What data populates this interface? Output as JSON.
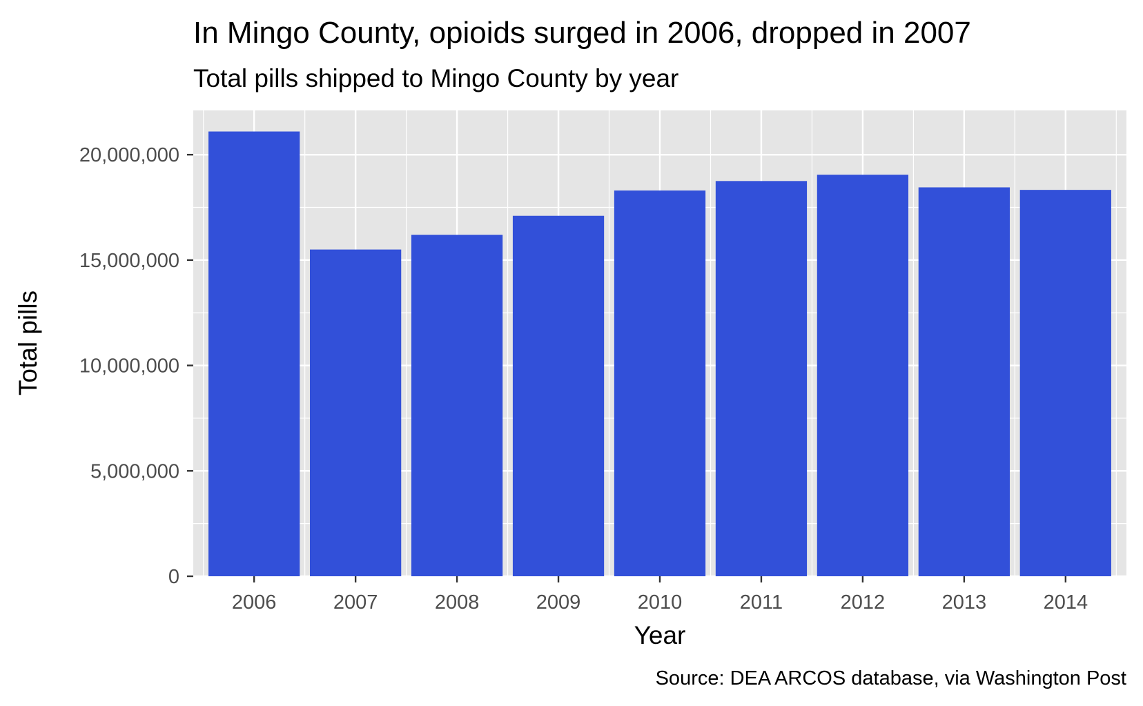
{
  "chart_data": {
    "type": "bar",
    "title": "In Mingo County, opioids surged in 2006, dropped in 2007",
    "subtitle": "Total pills shipped to Mingo County by year",
    "xlabel": "Year",
    "ylabel": "Total pills",
    "caption": "Source: DEA ARCOS database, via Washington Post",
    "categories": [
      "2006",
      "2007",
      "2008",
      "2009",
      "2010",
      "2011",
      "2012",
      "2013",
      "2014"
    ],
    "values": [
      21100000,
      15500000,
      16200000,
      17100000,
      18300000,
      18750000,
      19050000,
      18450000,
      18330000
    ],
    "ylim": [
      0,
      22100000
    ],
    "y_ticks": [
      0,
      5000000,
      10000000,
      15000000,
      20000000
    ],
    "y_tick_labels": [
      "0",
      "5,000,000",
      "10,000,000",
      "15,000,000",
      "20,000,000"
    ],
    "bar_color": "#3250d9",
    "panel_color": "#e5e5e5",
    "grid": true,
    "legend": "none"
  }
}
